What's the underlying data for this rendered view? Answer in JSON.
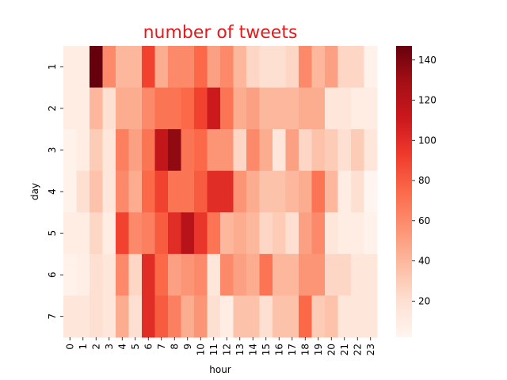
{
  "chart_data": {
    "type": "heatmap",
    "title": "number of tweets",
    "title_color": "#e41a1c",
    "xlabel": "hour",
    "ylabel": "day",
    "x": [
      "0",
      "1",
      "2",
      "3",
      "4",
      "5",
      "6",
      "7",
      "8",
      "9",
      "10",
      "11",
      "12",
      "13",
      "14",
      "15",
      "16",
      "17",
      "18",
      "19",
      "20",
      "21",
      "22",
      "23"
    ],
    "y": [
      "1",
      "2",
      "3",
      "4",
      "5",
      "6",
      "7"
    ],
    "values": [
      [
        10,
        10,
        147,
        60,
        40,
        40,
        90,
        45,
        60,
        60,
        75,
        50,
        60,
        40,
        25,
        20,
        20,
        25,
        60,
        40,
        50,
        25,
        25,
        5
      ],
      [
        10,
        10,
        40,
        20,
        45,
        45,
        60,
        70,
        70,
        75,
        90,
        110,
        70,
        45,
        50,
        40,
        40,
        40,
        45,
        45,
        15,
        15,
        10,
        10
      ],
      [
        5,
        10,
        30,
        15,
        65,
        50,
        70,
        115,
        135,
        70,
        75,
        55,
        55,
        25,
        60,
        45,
        15,
        50,
        25,
        35,
        30,
        20,
        30,
        15
      ],
      [
        5,
        20,
        35,
        15,
        60,
        45,
        75,
        90,
        70,
        70,
        80,
        100,
        100,
        55,
        45,
        35,
        35,
        40,
        45,
        70,
        40,
        10,
        20,
        2
      ],
      [
        10,
        10,
        25,
        10,
        90,
        60,
        65,
        80,
        100,
        120,
        95,
        70,
        40,
        45,
        40,
        25,
        30,
        20,
        50,
        60,
        15,
        10,
        10,
        5
      ],
      [
        5,
        8,
        20,
        15,
        60,
        25,
        100,
        75,
        50,
        55,
        60,
        15,
        60,
        50,
        45,
        70,
        40,
        40,
        55,
        55,
        25,
        25,
        15,
        15
      ],
      [
        15,
        15,
        20,
        15,
        45,
        20,
        100,
        80,
        65,
        45,
        55,
        20,
        10,
        35,
        35,
        20,
        35,
        35,
        75,
        30,
        35,
        15,
        15,
        15
      ]
    ],
    "vmin": 2,
    "vmax": 147,
    "colormap": "Reds",
    "colorbar_ticks": [
      20,
      40,
      60,
      80,
      100,
      120,
      140
    ]
  }
}
